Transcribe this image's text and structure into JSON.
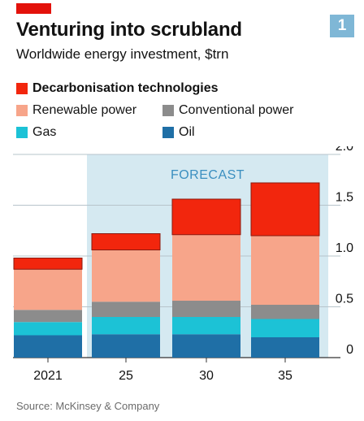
{
  "header": {
    "title": "Venturing into scrubland",
    "subtitle": "Worldwide energy investment, $trn",
    "figure_number": "1"
  },
  "forecast_label": "FORECAST",
  "source": "Source: McKinsey & Company",
  "colors": {
    "red_tag": "#e3120b",
    "forecast_shade": "#d5e9f1",
    "figure_badge": "#7fb7d6"
  },
  "chart_data": {
    "type": "bar",
    "stacked": true,
    "title": "Venturing into scrubland",
    "subtitle": "Worldwide energy investment, $trn",
    "categories": [
      "2021",
      "25",
      "30",
      "35"
    ],
    "ylim": [
      0,
      2.0
    ],
    "yticks": [
      0,
      0.5,
      1.0,
      1.5,
      2.0
    ],
    "ytick_labels": [
      "0",
      "0.5",
      "1.0",
      "1.5",
      "2.0"
    ],
    "grid": true,
    "forecast_categories": [
      "25",
      "30",
      "35"
    ],
    "legend_placement": "top",
    "series": [
      {
        "name": "Oil",
        "color": "#1f6fa6",
        "values": [
          0.22,
          0.23,
          0.23,
          0.2
        ]
      },
      {
        "name": "Gas",
        "color": "#1cc2d6",
        "values": [
          0.13,
          0.17,
          0.17,
          0.18
        ]
      },
      {
        "name": "Conventional power",
        "color": "#8c8c8c",
        "values": [
          0.12,
          0.15,
          0.16,
          0.14
        ]
      },
      {
        "name": "Renewable power",
        "color": "#f7a58a",
        "values": [
          0.4,
          0.51,
          0.65,
          0.68
        ]
      },
      {
        "name": "Decarbonisation technologies",
        "color": "#f2260d",
        "values": [
          0.11,
          0.16,
          0.35,
          0.52
        ]
      }
    ]
  },
  "legend_rows": [
    [
      {
        "label": "Decarbonisation technologies",
        "color": "#f2260d",
        "bold": true
      }
    ],
    [
      {
        "label": "Renewable power",
        "color": "#f7a58a"
      },
      {
        "label": "Conventional power",
        "color": "#8c8c8c"
      }
    ],
    [
      {
        "label": "Gas",
        "color": "#1cc2d6"
      },
      {
        "label": "Oil",
        "color": "#1f6fa6"
      }
    ]
  ]
}
